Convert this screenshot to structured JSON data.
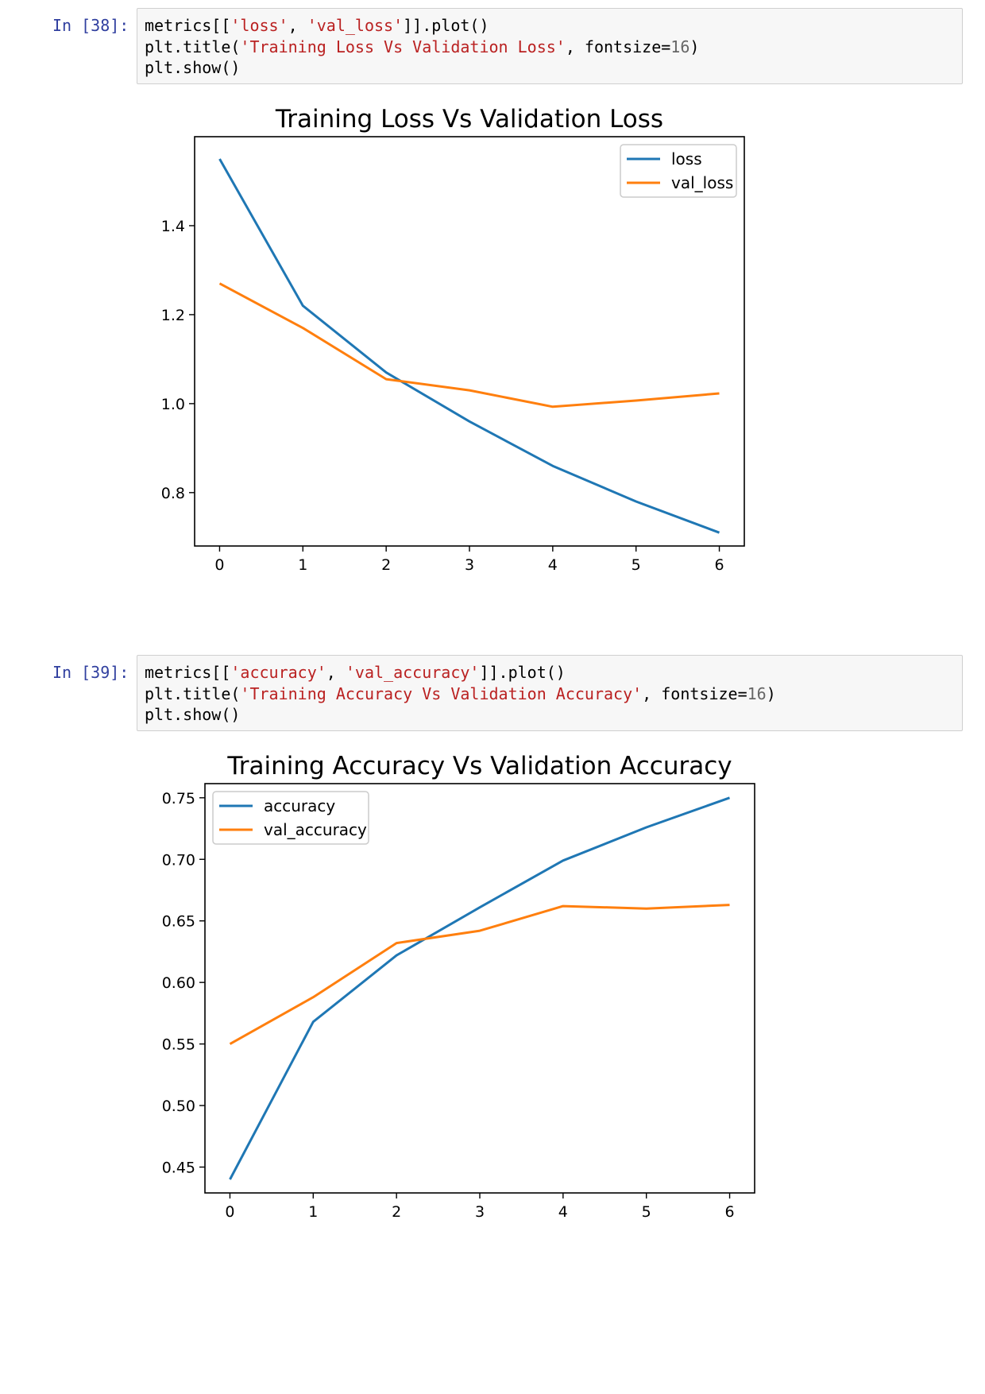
{
  "cells": [
    {
      "prompt": "In [38]:",
      "code": {
        "line1": {
          "a": "metrics[[",
          "b": "'loss'",
          "c": ", ",
          "d": "'val_loss'",
          "e": "]].plot()"
        },
        "line2": {
          "a": "plt.title(",
          "b": "'Training Loss Vs Validation Loss'",
          "c": ", fontsize=",
          "d": "16",
          "e": ")"
        },
        "line3": "plt.show()"
      }
    },
    {
      "prompt": "In [39]:",
      "code": {
        "line1": {
          "a": "metrics[[",
          "b": "'accuracy'",
          "c": ", ",
          "d": "'val_accuracy'",
          "e": "]].plot()"
        },
        "line2": {
          "a": "plt.title(",
          "b": "'Training Accuracy Vs Validation Accuracy'",
          "c": ", fontsize=",
          "d": "16",
          "e": ")"
        },
        "line3": "plt.show()"
      }
    }
  ],
  "colors": {
    "series1": "#1f77b4",
    "series2": "#ff7f0e"
  },
  "chart_data": [
    {
      "type": "line",
      "title": "Training Loss Vs Validation Loss",
      "xlabel": "",
      "ylabel": "",
      "x": [
        0,
        1,
        2,
        3,
        4,
        5,
        6
      ],
      "xticks": [
        0,
        1,
        2,
        3,
        4,
        5,
        6
      ],
      "yticks": [
        0.8,
        1.0,
        1.2,
        1.4
      ],
      "xlim": [
        -0.3,
        6.3
      ],
      "ylim": [
        0.68,
        1.6
      ],
      "ytick_format": 1,
      "legend": "top-right",
      "grid": false,
      "series": [
        {
          "name": "loss",
          "values": [
            1.55,
            1.22,
            1.07,
            0.96,
            0.86,
            0.78,
            0.71
          ]
        },
        {
          "name": "val_loss",
          "values": [
            1.27,
            1.17,
            1.055,
            1.03,
            0.993,
            1.007,
            1.023
          ]
        }
      ]
    },
    {
      "type": "line",
      "title": "Training Accuracy Vs Validation Accuracy",
      "xlabel": "",
      "ylabel": "",
      "x": [
        0,
        1,
        2,
        3,
        4,
        5,
        6
      ],
      "xticks": [
        0,
        1,
        2,
        3,
        4,
        5,
        6
      ],
      "yticks": [
        0.45,
        0.5,
        0.55,
        0.6,
        0.65,
        0.7,
        0.75
      ],
      "xlim": [
        -0.3,
        6.3
      ],
      "ylim": [
        0.429,
        0.7615
      ],
      "ytick_format": 2,
      "legend": "top-left",
      "grid": false,
      "series": [
        {
          "name": "accuracy",
          "values": [
            0.44,
            0.568,
            0.622,
            0.661,
            0.699,
            0.726,
            0.75
          ]
        },
        {
          "name": "val_accuracy",
          "values": [
            0.55,
            0.588,
            0.632,
            0.642,
            0.662,
            0.66,
            0.663
          ]
        }
      ]
    }
  ]
}
